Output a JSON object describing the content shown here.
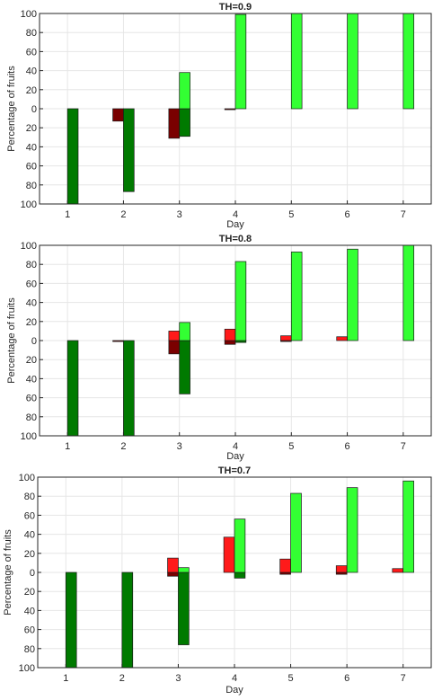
{
  "colors": {
    "bright_red": "#ff1a1a",
    "dark_red": "#7a0000",
    "bright_green": "#33ff33",
    "dark_green": "#007a00",
    "grid": "#e6e6e6",
    "axis": "#262626"
  },
  "chart_data": [
    {
      "type": "bar",
      "title": "TH=0.9",
      "xlabel": "Day",
      "ylabel": "Percentage of fruits",
      "categories": [
        "1",
        "2",
        "3",
        "4",
        "5",
        "6",
        "7"
      ],
      "xlim": [
        0.5,
        7.5
      ],
      "ylim": [
        -100,
        100
      ],
      "ytick_labels": [
        "100",
        "80",
        "60",
        "40",
        "20",
        "0",
        "20",
        "40",
        "60",
        "80",
        "100"
      ],
      "grid": true,
      "series": [
        {
          "color": "dark_red",
          "position": "left",
          "values": [
            0,
            -13,
            -31,
            -1,
            0,
            0,
            0
          ]
        },
        {
          "color": "bright_red",
          "position": "left",
          "values": [
            0,
            0,
            0,
            0,
            0,
            0,
            0
          ]
        },
        {
          "color": "dark_green",
          "position": "right",
          "values": [
            -100,
            -87,
            -29,
            0,
            0,
            0,
            0
          ]
        },
        {
          "color": "bright_green",
          "position": "right",
          "values": [
            0,
            0,
            38,
            99,
            100,
            100,
            100
          ]
        }
      ]
    },
    {
      "type": "bar",
      "title": "TH=0.8",
      "xlabel": "Day",
      "ylabel": "Percentage of fruits",
      "categories": [
        "1",
        "2",
        "3",
        "4",
        "5",
        "6",
        "7"
      ],
      "xlim": [
        0.5,
        7.5
      ],
      "ylim": [
        -100,
        100
      ],
      "ytick_labels": [
        "100",
        "80",
        "60",
        "40",
        "20",
        "0",
        "20",
        "40",
        "60",
        "80",
        "100"
      ],
      "grid": true,
      "series": [
        {
          "color": "dark_red",
          "position": "left",
          "values": [
            0,
            -1,
            -14,
            -4,
            -1,
            0,
            0
          ]
        },
        {
          "color": "bright_red",
          "position": "left",
          "values": [
            0,
            0,
            10,
            12,
            5,
            4,
            0
          ]
        },
        {
          "color": "dark_green",
          "position": "right",
          "values": [
            -100,
            -100,
            -56,
            -2,
            0,
            0,
            0
          ]
        },
        {
          "color": "bright_green",
          "position": "right",
          "values": [
            0,
            0,
            19,
            83,
            93,
            96,
            100
          ]
        }
      ]
    },
    {
      "type": "bar",
      "title": "TH=0.7",
      "xlabel": "Day",
      "ylabel": "Percentage of fruits",
      "categories": [
        "1",
        "2",
        "3",
        "4",
        "5",
        "6",
        "7"
      ],
      "xlim": [
        0.5,
        7.5
      ],
      "ylim": [
        -100,
        100
      ],
      "ytick_labels": [
        "100",
        "80",
        "60",
        "40",
        "20",
        "0",
        "20",
        "40",
        "60",
        "80",
        "100"
      ],
      "grid": true,
      "series": [
        {
          "color": "dark_red",
          "position": "left",
          "values": [
            0,
            0,
            -4,
            0,
            -2,
            -2,
            0
          ]
        },
        {
          "color": "bright_red",
          "position": "left",
          "values": [
            0,
            0,
            15,
            37,
            14,
            7,
            4
          ]
        },
        {
          "color": "dark_green",
          "position": "right",
          "values": [
            -100,
            -100,
            -76,
            -6,
            0,
            0,
            0
          ]
        },
        {
          "color": "bright_green",
          "position": "right",
          "values": [
            0,
            0,
            5,
            56,
            83,
            89,
            96
          ]
        }
      ]
    }
  ]
}
